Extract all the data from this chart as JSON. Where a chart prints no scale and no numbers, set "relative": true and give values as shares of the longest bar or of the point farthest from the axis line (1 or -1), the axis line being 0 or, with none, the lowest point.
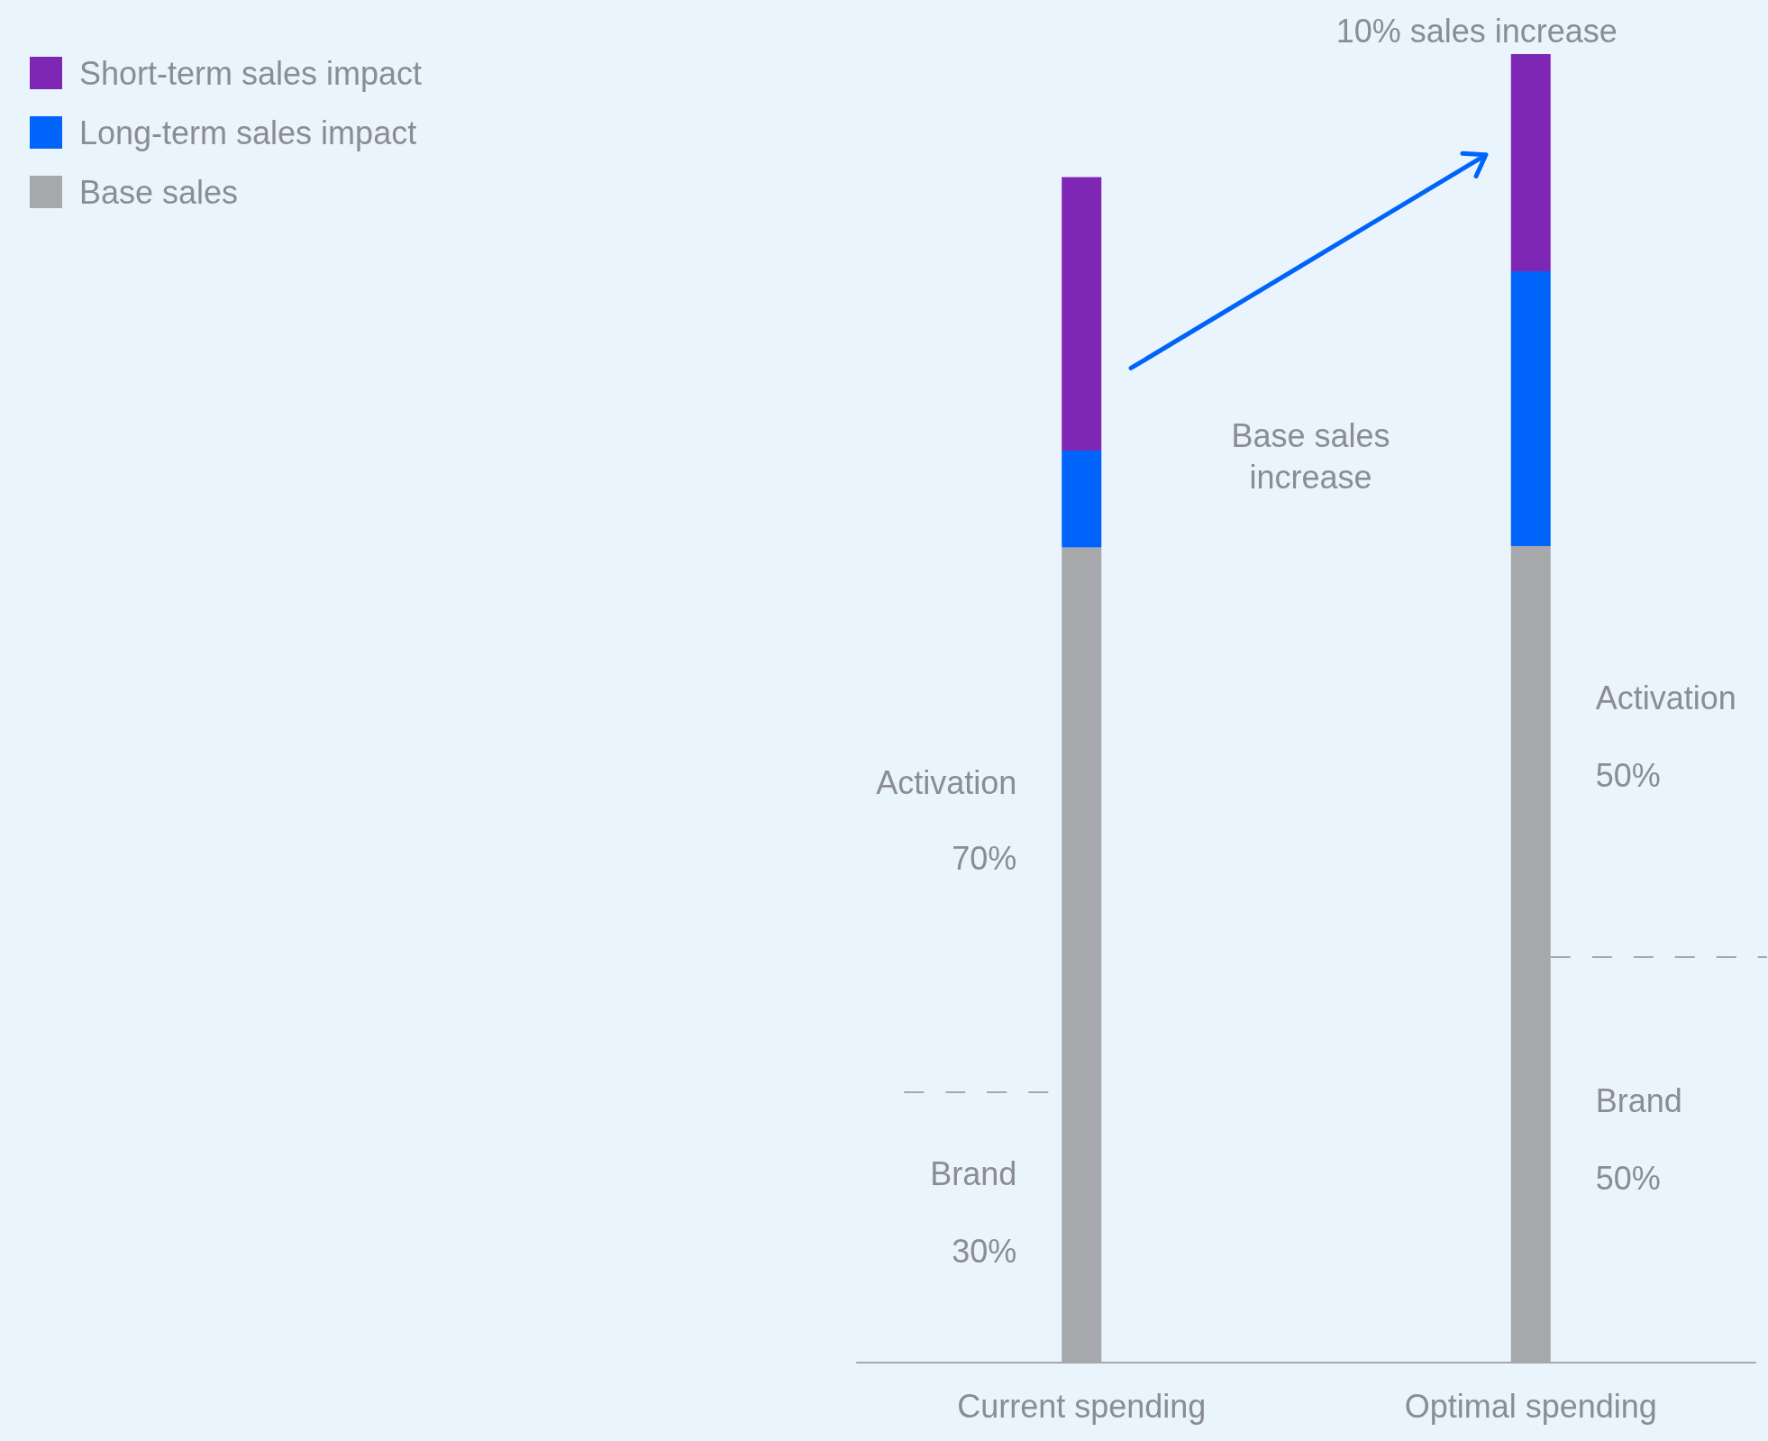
{
  "chart_data": {
    "type": "bar",
    "stacked": true,
    "relative": true,
    "legend": "top left",
    "categories": [
      "Current spending",
      "Optimal spending"
    ],
    "series": [
      {
        "name": "Base sales",
        "color": "#a7a8ab",
        "values": [
          0.623,
          0.624
        ]
      },
      {
        "name": "Long-term sales impact",
        "color": "#0064fa",
        "values": [
          0.074,
          0.21
        ]
      },
      {
        "name": "Short-term sales impact",
        "color": "#7f27b5",
        "values": [
          0.209,
          0.166
        ]
      }
    ],
    "ref_lines": [
      {
        "axis": "y",
        "value": 0.207,
        "line_style": "dashed",
        "color": "#a7a8ab"
      },
      {
        "axis": "y",
        "value": 0.31,
        "line_style": "dashed",
        "color": "#a7a8ab"
      }
    ],
    "annotations": [
      {
        "text": "10% sales increase",
        "x": "Optimal spending",
        "y": 1
      },
      "Base sales increase",
      "Activation",
      "70%",
      "Brand",
      "30%",
      "Activation",
      "50%",
      "Brand",
      "50%"
    ]
  }
}
